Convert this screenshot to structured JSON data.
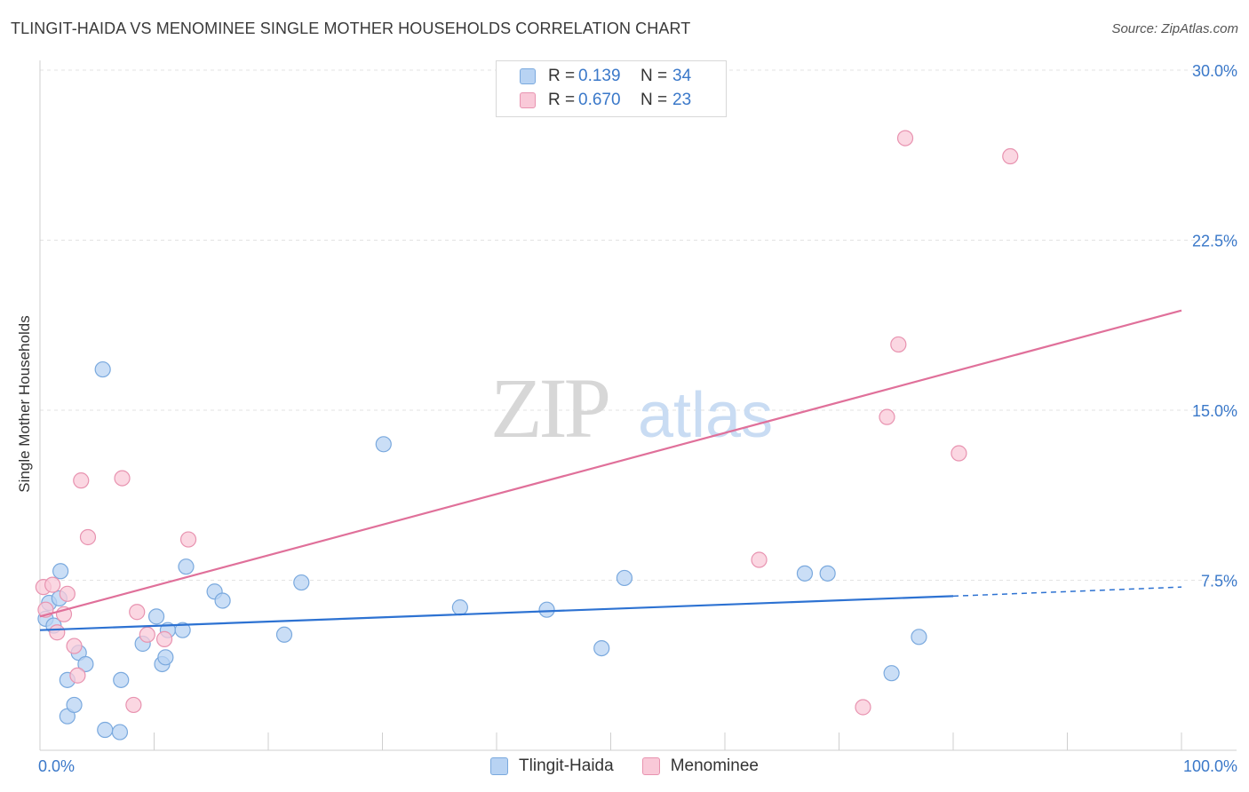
{
  "header": {
    "title": "TLINGIT-HAIDA VS MENOMINEE SINGLE MOTHER HOUSEHOLDS CORRELATION CHART",
    "source": "Source: ZipAtlas.com"
  },
  "legend": {
    "rows": [
      {
        "r_label": "R =",
        "r_value": "0.139",
        "n_label": "N =",
        "n_value": "34"
      },
      {
        "r_label": "R =",
        "r_value": "0.670",
        "n_label": "N =",
        "n_value": "23"
      }
    ]
  },
  "watermark": {
    "zip": "ZIP",
    "atlas": "atlas"
  },
  "colors": {
    "blue_fill": "#b8d3f3",
    "blue_stroke": "#7aa9de",
    "blue_line": "#2d72d2",
    "pink_fill": "#f9c9d8",
    "pink_stroke": "#e893b0",
    "pink_line": "#e0709a",
    "tick_label": "#3a78c9",
    "grid": "#e3e3e3"
  },
  "chart_data": {
    "type": "scatter",
    "xlabel": "",
    "ylabel": "Single Mother Households",
    "xlim": [
      0,
      100
    ],
    "ylim": [
      0,
      30
    ],
    "x_tick_labels": [
      "0.0%",
      "100.0%"
    ],
    "y_ticks": [
      7.5,
      15.0,
      22.5,
      30.0
    ],
    "y_tick_labels": [
      "7.5%",
      "15.0%",
      "22.5%",
      "30.0%"
    ],
    "grid": true,
    "legend_position": "top-center",
    "series": [
      {
        "name": "Tlingit-Haida",
        "color": "#b8d3f3",
        "points": [
          [
            0.5,
            5.8
          ],
          [
            0.8,
            6.5
          ],
          [
            1.2,
            5.5
          ],
          [
            1.7,
            6.7
          ],
          [
            1.8,
            7.9
          ],
          [
            2.4,
            3.1
          ],
          [
            2.4,
            1.5
          ],
          [
            3.0,
            2.0
          ],
          [
            3.4,
            4.3
          ],
          [
            4.0,
            3.8
          ],
          [
            5.5,
            16.8
          ],
          [
            5.7,
            0.9
          ],
          [
            7.0,
            0.8
          ],
          [
            7.1,
            3.1
          ],
          [
            9.0,
            4.7
          ],
          [
            10.2,
            5.9
          ],
          [
            10.7,
            3.8
          ],
          [
            11.0,
            4.1
          ],
          [
            11.2,
            5.3
          ],
          [
            12.5,
            5.3
          ],
          [
            12.8,
            8.1
          ],
          [
            15.3,
            7.0
          ],
          [
            16.0,
            6.6
          ],
          [
            21.4,
            5.1
          ],
          [
            22.9,
            7.4
          ],
          [
            30.1,
            13.5
          ],
          [
            36.8,
            6.3
          ],
          [
            44.4,
            6.2
          ],
          [
            49.2,
            4.5
          ],
          [
            51.2,
            7.6
          ],
          [
            67.0,
            7.8
          ],
          [
            69.0,
            7.8
          ],
          [
            74.6,
            3.4
          ],
          [
            77.0,
            5.0
          ]
        ]
      },
      {
        "name": "Menominee",
        "color": "#f9c9d8",
        "points": [
          [
            0.3,
            7.2
          ],
          [
            0.5,
            6.2
          ],
          [
            1.1,
            7.3
          ],
          [
            1.5,
            5.2
          ],
          [
            2.1,
            6.0
          ],
          [
            2.4,
            6.9
          ],
          [
            3.0,
            4.6
          ],
          [
            3.3,
            3.3
          ],
          [
            3.6,
            11.9
          ],
          [
            4.2,
            9.4
          ],
          [
            7.2,
            12.0
          ],
          [
            8.2,
            2.0
          ],
          [
            8.5,
            6.1
          ],
          [
            9.4,
            5.1
          ],
          [
            10.9,
            4.9
          ],
          [
            13.0,
            9.3
          ],
          [
            63.0,
            8.4
          ],
          [
            72.1,
            1.9
          ],
          [
            74.2,
            14.7
          ],
          [
            75.2,
            17.9
          ],
          [
            75.8,
            27.0
          ],
          [
            80.5,
            13.1
          ],
          [
            85.0,
            26.2
          ]
        ]
      }
    ],
    "trend_lines": [
      {
        "series": "Tlingit-Haida",
        "x0": 0,
        "y0": 5.3,
        "x1": 80,
        "y1": 6.8,
        "dashed_to": 100,
        "dashed_y": 7.2
      },
      {
        "series": "Menominee",
        "x0": 0,
        "y0": 5.9,
        "x1": 100,
        "y1": 19.4
      }
    ]
  }
}
